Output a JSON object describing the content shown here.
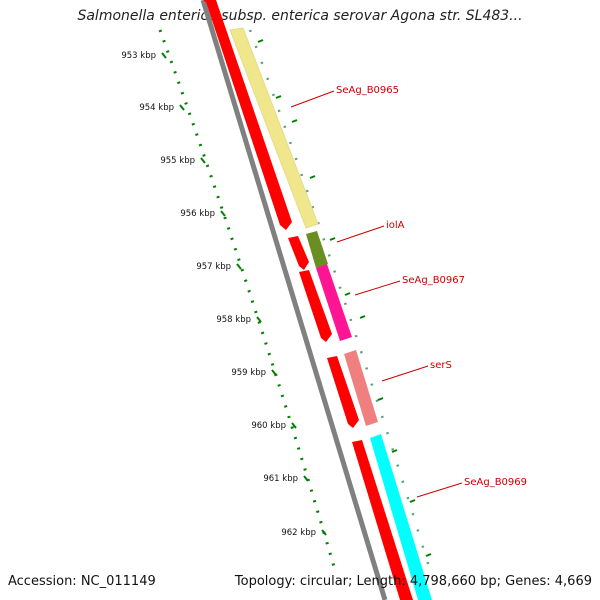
{
  "title": "Salmonella enterica subsp. enterica serovar Agona str. SL483...",
  "footer": {
    "accession": "Accession: NC_011149",
    "summary": "Topology: circular; Length: 4,798,660 bp; Genes: 4,669"
  },
  "kbp_labels": [
    "953 kbp",
    "954 kbp",
    "955 kbp",
    "956 kbp",
    "957 kbp",
    "958 kbp",
    "959 kbp",
    "960 kbp",
    "961 kbp",
    "962 kbp"
  ],
  "genes": [
    {
      "label": "SeAg_B0965",
      "color": "#f0e68c"
    },
    {
      "label": "iolA",
      "color": "#6b8e23"
    },
    {
      "label": "SeAg_B0967",
      "color": "#ff1493"
    },
    {
      "label": "serS",
      "color": "#f08080"
    },
    {
      "label": "SeAg_B0969",
      "color": "#00ffff"
    }
  ],
  "colors": {
    "cds": "#ff0000",
    "backbone": "#808080",
    "tick": "#008000",
    "label_line": "#cc0000"
  }
}
